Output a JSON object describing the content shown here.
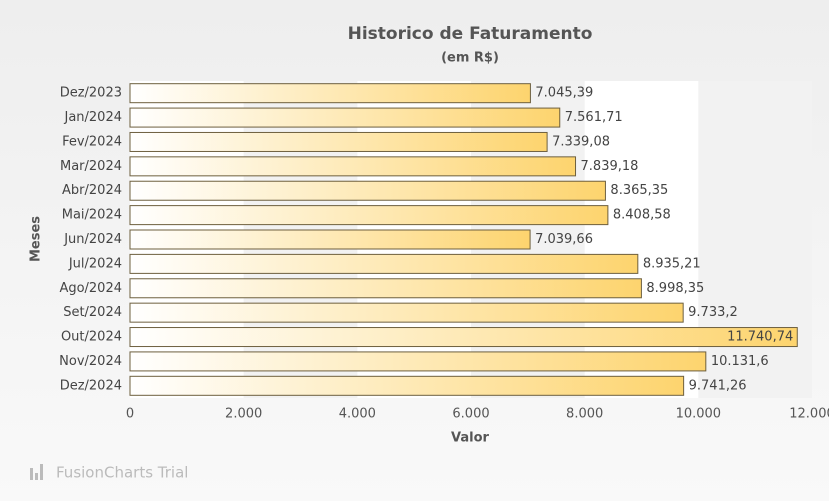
{
  "chart_data": {
    "type": "bar",
    "title": "Historico de Faturamento",
    "subtitle": "(em R$)",
    "xlabel": "Valor",
    "ylabel": "Meses",
    "watermark": "FusionCharts Trial",
    "categories": [
      "Dez/2023",
      "Jan/2024",
      "Fev/2024",
      "Mar/2024",
      "Abr/2024",
      "Mai/2024",
      "Jun/2024",
      "Jul/2024",
      "Ago/2024",
      "Set/2024",
      "Out/2024",
      "Nov/2024",
      "Dez/2024"
    ],
    "values": [
      7045.39,
      7561.71,
      7339.08,
      7839.18,
      8365.35,
      8408.58,
      7039.66,
      8935.21,
      8998.35,
      9733.2,
      11740.74,
      10131.6,
      9741.26
    ],
    "value_labels": [
      "7.045,39",
      "7.561,71",
      "7.339,08",
      "7.839,18",
      "8.365,35",
      "8.408,58",
      "7.039,66",
      "8.935,21",
      "8.998,35",
      "9.733,2",
      "11.740,74",
      "10.131,6",
      "9.741,26"
    ],
    "color": "#fdd46e",
    "xlim": [
      0,
      12000
    ],
    "xticks": [
      0,
      {
        "value": 2000,
        "label": "2.000"
      },
      {
        "value": 4000,
        "label": "4.000"
      },
      {
        "value": 6000,
        "label": "6.000"
      },
      {
        "value": 8000,
        "label": "8.000"
      },
      {
        "value": 10000,
        "label": "10.000"
      },
      {
        "value": 12000,
        "label": "12.000"
      }
    ],
    "grid": true
  }
}
